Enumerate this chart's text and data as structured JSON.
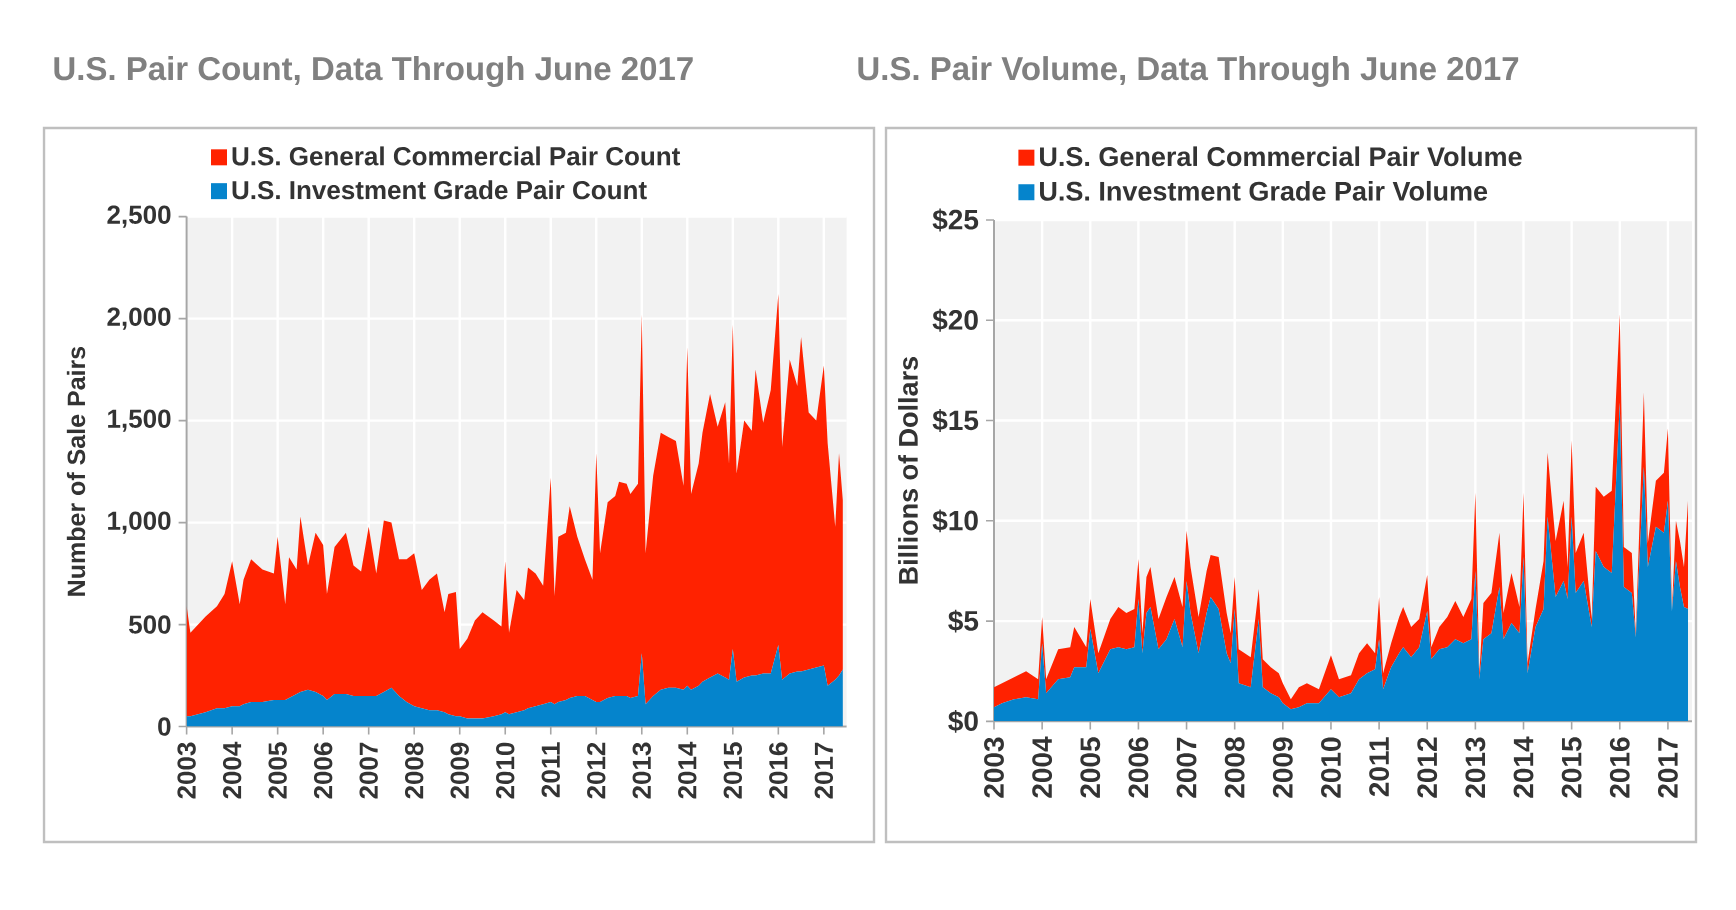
{
  "chart_data": [
    {
      "type": "area",
      "title": "U.S. Pair Count, Data Through June 2017",
      "ylabel": "Number of Sale Pairs",
      "stacked": true,
      "x": [
        "2003-01",
        "2003-02",
        "2003-06",
        "2003-09",
        "2003-11",
        "2004-01",
        "2004-03",
        "2004-04",
        "2004-06",
        "2004-09",
        "2004-12",
        "2005-01",
        "2005-03",
        "2005-04",
        "2005-06",
        "2005-07",
        "2005-09",
        "2005-11",
        "2006-01",
        "2006-02",
        "2006-04",
        "2006-07",
        "2006-09",
        "2006-11",
        "2007-01",
        "2007-03",
        "2007-05",
        "2007-07",
        "2007-09",
        "2007-11",
        "2008-01",
        "2008-03",
        "2008-05",
        "2008-07",
        "2008-09",
        "2008-10",
        "2008-12",
        "2009-01",
        "2009-03",
        "2009-05",
        "2009-07",
        "2009-10",
        "2009-12",
        "2010-01",
        "2010-02",
        "2010-04",
        "2010-06",
        "2010-07",
        "2010-09",
        "2010-11",
        "2011-01",
        "2011-02",
        "2011-03",
        "2011-05",
        "2011-06",
        "2011-08",
        "2011-10",
        "2011-12",
        "2012-01",
        "2012-02",
        "2012-04",
        "2012-06",
        "2012-07",
        "2012-09",
        "2012-10",
        "2012-12",
        "2013-01",
        "2013-02",
        "2013-04",
        "2013-06",
        "2013-08",
        "2013-10",
        "2013-12",
        "2014-01",
        "2014-02",
        "2014-04",
        "2014-05",
        "2014-07",
        "2014-09",
        "2014-11",
        "2014-12",
        "2015-01",
        "2015-02",
        "2015-04",
        "2015-06",
        "2015-07",
        "2015-09",
        "2015-11",
        "2016-01",
        "2016-02",
        "2016-04",
        "2016-06",
        "2016-07",
        "2016-09",
        "2016-11",
        "2017-01",
        "2017-02",
        "2017-04",
        "2017-05",
        "2017-06"
      ],
      "series": [
        {
          "name": "U.S. Investment Grade Pair Count",
          "color": "#0584cc",
          "values": [
            50,
            50,
            70,
            90,
            90,
            100,
            100,
            110,
            120,
            120,
            130,
            130,
            130,
            140,
            160,
            170,
            180,
            170,
            150,
            130,
            160,
            160,
            150,
            150,
            150,
            150,
            170,
            190,
            150,
            120,
            100,
            90,
            80,
            80,
            70,
            60,
            50,
            50,
            40,
            40,
            40,
            50,
            60,
            70,
            60,
            70,
            80,
            90,
            100,
            110,
            120,
            110,
            120,
            130,
            140,
            150,
            150,
            130,
            120,
            120,
            140,
            150,
            150,
            150,
            140,
            150,
            360,
            110,
            150,
            180,
            190,
            190,
            180,
            200,
            180,
            200,
            220,
            240,
            260,
            240,
            230,
            380,
            220,
            240,
            250,
            250,
            260,
            260,
            400,
            230,
            260,
            270,
            270,
            280,
            290,
            300,
            200,
            230,
            250,
            280
          ]
        },
        {
          "name": "U.S. General Commercial Pair Count",
          "color": "#ff2200",
          "values": [
            540,
            410,
            470,
            500,
            560,
            710,
            500,
            610,
            700,
            650,
            620,
            800,
            470,
            690,
            610,
            860,
            610,
            780,
            740,
            520,
            720,
            790,
            640,
            610,
            830,
            600,
            840,
            810,
            670,
            700,
            750,
            580,
            640,
            670,
            490,
            590,
            610,
            330,
            390,
            480,
            520,
            470,
            430,
            740,
            400,
            600,
            540,
            690,
            650,
            580,
            1100,
            530,
            810,
            820,
            940,
            780,
            670,
            590,
            1220,
            730,
            960,
            980,
            1050,
            1040,
            1000,
            1040,
            1660,
            740,
            1080,
            1260,
            1230,
            1210,
            1000,
            1660,
            960,
            1090,
            1220,
            1390,
            1210,
            1350,
            1060,
            1590,
            1020,
            1260,
            1200,
            1500,
            1230,
            1390,
            1720,
            1140,
            1540,
            1400,
            1640,
            1260,
            1210,
            1470,
            1190,
            750,
            1090,
            830
          ]
        }
      ],
      "xlim": [
        "2003-01",
        "2017-07"
      ],
      "xticks": [
        "2003",
        "2004",
        "2005",
        "2006",
        "2007",
        "2008",
        "2009",
        "2010",
        "2011",
        "2012",
        "2013",
        "2014",
        "2015",
        "2016",
        "2017"
      ],
      "ylim": [
        0,
        2500
      ],
      "yticks": [
        0,
        500,
        {
          "value": 1000,
          "label": "1,000"
        },
        {
          "value": 1500,
          "label": "1,500"
        },
        {
          "value": 2000,
          "label": "2,000"
        },
        {
          "value": 2500,
          "label": "2,500"
        }
      ],
      "grid": true,
      "legend": "top left"
    },
    {
      "type": "area",
      "title": "U.S. Pair Volume, Data Through June 2017",
      "ylabel": "Billions of Dollars",
      "stacked": true,
      "x": [
        "2003-01",
        "2003-03",
        "2003-06",
        "2003-09",
        "2003-12",
        "2004-01",
        "2004-02",
        "2004-05",
        "2004-08",
        "2004-09",
        "2004-12",
        "2005-01",
        "2005-03",
        "2005-06",
        "2005-08",
        "2005-10",
        "2005-12",
        "2006-01",
        "2006-02",
        "2006-03",
        "2006-04",
        "2006-06",
        "2006-08",
        "2006-10",
        "2006-12",
        "2007-01",
        "2007-02",
        "2007-04",
        "2007-06",
        "2007-07",
        "2007-09",
        "2007-11",
        "2007-12",
        "2008-01",
        "2008-02",
        "2008-05",
        "2008-07",
        "2008-08",
        "2008-10",
        "2008-12",
        "2009-01",
        "2009-03",
        "2009-05",
        "2009-07",
        "2009-10",
        "2010-01",
        "2010-03",
        "2010-06",
        "2010-08",
        "2010-10",
        "2010-12",
        "2011-01",
        "2011-02",
        "2011-04",
        "2011-06",
        "2011-07",
        "2011-09",
        "2011-11",
        "2012-01",
        "2012-02",
        "2012-04",
        "2012-06",
        "2012-08",
        "2012-10",
        "2012-12",
        "2013-01",
        "2013-02",
        "2013-03",
        "2013-05",
        "2013-07",
        "2013-08",
        "2013-10",
        "2013-12",
        "2014-01",
        "2014-02",
        "2014-04",
        "2014-06",
        "2014-07",
        "2014-09",
        "2014-11",
        "2014-12",
        "2015-01",
        "2015-02",
        "2015-04",
        "2015-06",
        "2015-07",
        "2015-09",
        "2015-11",
        "2016-01",
        "2016-02",
        "2016-04",
        "2016-05",
        "2016-07",
        "2016-08",
        "2016-10",
        "2016-12",
        "2017-01",
        "2017-02",
        "2017-03",
        "2017-04",
        "2017-05",
        "2017-06"
      ],
      "series": [
        {
          "name": "U.S. Investment Grade Pair Volume",
          "color": "#0584cc",
          "values": [
            0.7,
            0.9,
            1.1,
            1.2,
            1.1,
            3.9,
            1.4,
            2.1,
            2.2,
            2.7,
            2.7,
            4.6,
            2.4,
            3.6,
            3.7,
            3.6,
            3.7,
            6.1,
            3.4,
            5.4,
            5.7,
            3.6,
            4.1,
            5.1,
            3.7,
            7.0,
            5.4,
            3.4,
            5.4,
            6.2,
            5.6,
            3.4,
            2.9,
            5.6,
            1.9,
            1.7,
            5.1,
            1.7,
            1.4,
            1.2,
            0.9,
            0.6,
            0.7,
            0.9,
            0.9,
            1.6,
            1.2,
            1.4,
            2.1,
            2.4,
            2.6,
            4.1,
            1.6,
            2.7,
            3.4,
            3.7,
            3.2,
            3.7,
            5.5,
            3.1,
            3.6,
            3.7,
            4.1,
            3.9,
            4.1,
            7.5,
            2.1,
            4.1,
            4.4,
            6.7,
            4.1,
            4.9,
            4.4,
            8.2,
            2.4,
            4.7,
            5.6,
            10.2,
            6.2,
            7.0,
            6.1,
            10.2,
            6.4,
            7.0,
            4.7,
            8.5,
            7.7,
            7.4,
            15.9,
            6.7,
            6.4,
            4.2,
            12.7,
            7.7,
            9.7,
            9.4,
            11.0,
            5.5,
            8.0,
            6.7,
            5.7,
            5.6
          ]
        },
        {
          "name": "U.S. General Commercial Pair Volume",
          "color": "#ff2200",
          "values": [
            1.0,
            1.0,
            1.1,
            1.3,
            1.0,
            1.3,
            0.7,
            1.5,
            1.5,
            2.0,
            1.0,
            1.5,
            1.0,
            1.5,
            2.0,
            1.8,
            1.9,
            2.0,
            1.0,
            1.8,
            2.0,
            1.5,
            2.1,
            2.1,
            2.0,
            2.5,
            2.3,
            1.8,
            2.1,
            2.1,
            2.6,
            2.0,
            1.5,
            1.6,
            1.7,
            1.5,
            1.5,
            1.4,
            1.3,
            1.2,
            1.0,
            0.5,
            1.0,
            1.0,
            0.7,
            1.7,
            0.9,
            0.9,
            1.3,
            1.5,
            0.8,
            2.1,
            0.8,
            1.2,
            1.8,
            2.0,
            1.5,
            1.4,
            1.8,
            0.6,
            1.1,
            1.5,
            1.9,
            1.3,
            2.0,
            3.9,
            0.3,
            1.8,
            2.0,
            2.7,
            1.3,
            2.5,
            1.3,
            3.2,
            0.5,
            0.9,
            2.4,
            3.2,
            2.8,
            4.0,
            1.6,
            3.8,
            2.0,
            2.4,
            0.4,
            3.2,
            3.5,
            4.1,
            4.4,
            2.0,
            2.0,
            0.2,
            3.7,
            1.2,
            2.3,
            3.0,
            3.6,
            0.1,
            2.0,
            2.3,
            2.0,
            5.4
          ]
        }
      ],
      "xlim": [
        "2003-01",
        "2017-07"
      ],
      "xticks": [
        "2003",
        "2004",
        "2005",
        "2006",
        "2007",
        "2008",
        "2009",
        "2010",
        "2011",
        "2012",
        "2013",
        "2014",
        "2015",
        "2016",
        "2017"
      ],
      "ylim": [
        0,
        25
      ],
      "yticks": [
        {
          "value": 0,
          "label": "$0"
        },
        {
          "value": 5,
          "label": "$5"
        },
        {
          "value": 10,
          "label": "$10"
        },
        {
          "value": 15,
          "label": "$15"
        },
        {
          "value": 20,
          "label": "$20"
        },
        {
          "value": 25,
          "label": "$25"
        }
      ],
      "grid": true,
      "legend": "top left"
    }
  ]
}
